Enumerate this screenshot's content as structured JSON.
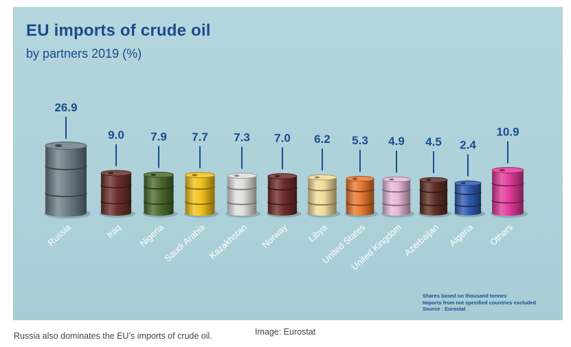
{
  "chart_data": {
    "type": "bar",
    "title": "EU imports of crude oil",
    "subtitle": "by partners 2019 (%)",
    "categories": [
      "Russia",
      "Iraq",
      "Nigeria",
      "Saudi Arabia",
      "Kazakhstan",
      "Norway",
      "Libya",
      "United States",
      "United Kingdom",
      "Azerbaijan",
      "Algeria",
      "Others"
    ],
    "values": [
      26.9,
      9.0,
      7.9,
      7.7,
      7.3,
      7.0,
      6.2,
      5.3,
      4.9,
      4.5,
      2.4,
      10.9
    ],
    "value_labels": [
      "26.9",
      "9.0",
      "7.9",
      "7.7",
      "7.3",
      "7.0",
      "6.2",
      "5.3",
      "4.9",
      "4.5",
      "2.4",
      "10.9"
    ],
    "colors": [
      "#6d7d87",
      "#6b2f2a",
      "#4d6b2c",
      "#f2c21a",
      "#dfe0dc",
      "#6e2c2a",
      "#f1dc9a",
      "#e87830",
      "#e8b8d8",
      "#5f2e26",
      "#2f5ab0",
      "#e23a9a"
    ],
    "notes": [
      "Shares based on thousand tonnes",
      "Imports from not specified countries excluded",
      "Source : Eurostat"
    ]
  },
  "caption": "Russia also dominates the EU’s imports of crude oil.",
  "credit": "Image: Eurostat"
}
